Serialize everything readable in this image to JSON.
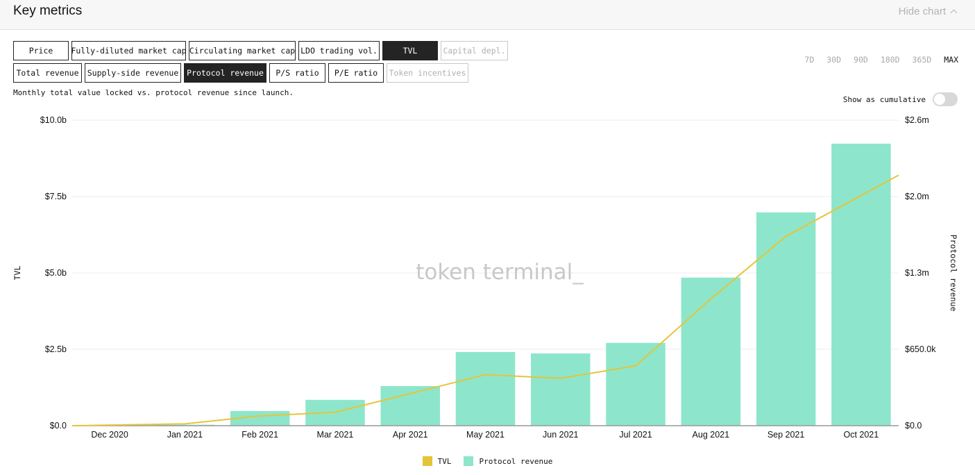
{
  "header": {
    "title": "Key metrics",
    "hide_label": "Hide chart"
  },
  "metrics_row1": [
    {
      "label": "Price",
      "state": "normal"
    },
    {
      "label": "Fully-diluted market cap",
      "state": "normal"
    },
    {
      "label": "Circulating market cap",
      "state": "normal"
    },
    {
      "label": "LDO trading vol.",
      "state": "normal"
    },
    {
      "label": "TVL",
      "state": "active"
    },
    {
      "label": "Capital depl.",
      "state": "disabled"
    }
  ],
  "metrics_row2": [
    {
      "label": "Total revenue",
      "state": "normal"
    },
    {
      "label": "Supply-side revenue",
      "state": "normal"
    },
    {
      "label": "Protocol revenue",
      "state": "active"
    },
    {
      "label": "P/S ratio",
      "state": "normal"
    },
    {
      "label": "P/E ratio",
      "state": "normal"
    },
    {
      "label": "Token incentives",
      "state": "disabled"
    }
  ],
  "ranges": [
    "7D",
    "30D",
    "90D",
    "180D",
    "365D",
    "MAX"
  ],
  "selected_range": "MAX",
  "description": "Monthly total value locked vs. protocol revenue since launch.",
  "cumulative": {
    "label": "Show as cumulative",
    "on": false
  },
  "watermark": "token terminal_",
  "colors": {
    "tvl": "#e5c43a",
    "revenue": "#8de6cb",
    "axis": "#999999",
    "grid": "#eeeeee"
  },
  "chart_data": {
    "type": "bar",
    "categories": [
      "Dec 2020",
      "Jan 2021",
      "Feb 2021",
      "Mar 2021",
      "Apr 2021",
      "May 2021",
      "Jun 2021",
      "Jul 2021",
      "Aug 2021",
      "Sep 2021",
      "Oct 2021"
    ],
    "series": [
      {
        "name": "Protocol revenue",
        "type": "bar",
        "axis": "right",
        "values": [
          0,
          8000,
          125000,
          220000,
          337000,
          627000,
          615000,
          705000,
          1260000,
          1815000,
          2400000
        ]
      },
      {
        "name": "TVL",
        "type": "line",
        "axis": "left",
        "values": [
          0,
          0.06,
          0.32,
          0.44,
          1.05,
          1.67,
          1.55,
          1.96,
          4.15,
          6.2,
          8.2
        ]
      }
    ],
    "left_axis": {
      "label": "TVL",
      "unit": "billions USD",
      "range": [
        0,
        10
      ],
      "ticks": [
        0,
        2.5,
        5,
        7.5,
        10
      ],
      "tick_labels": [
        "$0.0",
        "$2.5b",
        "$5.0b",
        "$7.5b",
        "$10.0b"
      ]
    },
    "right_axis": {
      "label": "Protocol revenue",
      "unit": "USD",
      "range": [
        0,
        2600000
      ],
      "ticks": [
        0,
        650000,
        1300000,
        1950000,
        2600000
      ],
      "tick_labels": [
        "$0.0",
        "$650.0k",
        "$1.3m",
        "$2.0m",
        "$2.6m"
      ]
    },
    "grid": true,
    "legend": {
      "position": "bottom",
      "items": [
        "TVL",
        "Protocol revenue"
      ]
    }
  }
}
